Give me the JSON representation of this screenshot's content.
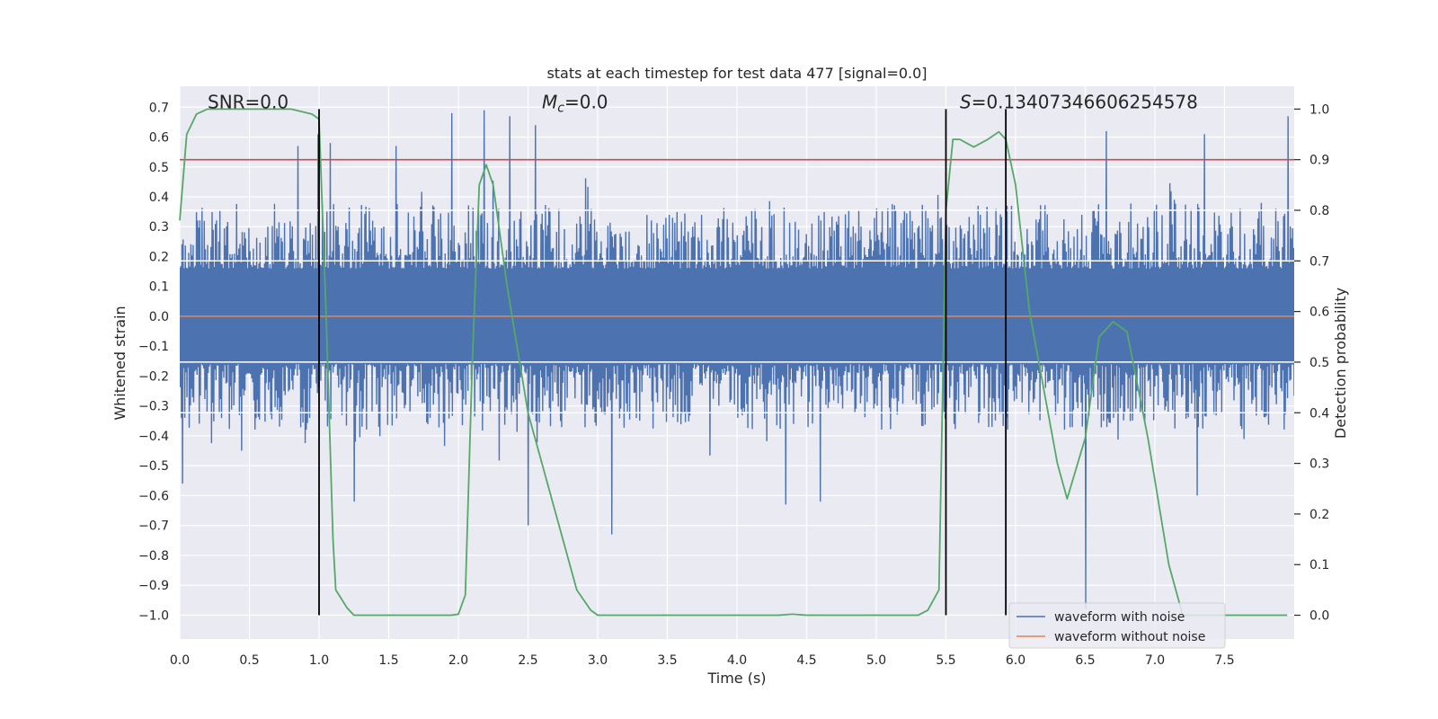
{
  "chart_data": {
    "type": "line",
    "title": "stats at each timestep for test data 477 [signal=0.0]",
    "xlabel": "Time (s)",
    "ylabel_left": "Whitened strain",
    "ylabel_right": "Detection probability",
    "xlim": [
      0.0,
      8.0
    ],
    "ylim_left": [
      -1.08,
      0.77
    ],
    "ylim_right": [
      -0.047,
      1.045
    ],
    "x_ticks": [
      0.0,
      0.5,
      1.0,
      1.5,
      2.0,
      2.5,
      3.0,
      3.5,
      4.0,
      4.5,
      5.0,
      5.5,
      6.0,
      6.5,
      7.0,
      7.5
    ],
    "x_tick_labels": [
      "0.0",
      "0.5",
      "1.0",
      "1.5",
      "2.0",
      "2.5",
      "3.0",
      "3.5",
      "4.0",
      "4.5",
      "5.0",
      "5.5",
      "6.0",
      "6.5",
      "7.0",
      "7.5"
    ],
    "y_ticks_left": [
      0.7,
      0.6,
      0.5,
      0.4,
      0.3,
      0.2,
      0.1,
      0.0,
      -0.1,
      -0.2,
      -0.3,
      -0.4,
      -0.5,
      -0.6,
      -0.7,
      -0.8,
      -0.9,
      -1.0
    ],
    "y_tick_labels_left": [
      "0.7",
      "0.6",
      "0.5",
      "0.4",
      "0.3",
      "0.2",
      "0.1",
      "0.0",
      "−0.1",
      "−0.2",
      "−0.3",
      "−0.4",
      "−0.5",
      "−0.6",
      "−0.7",
      "−0.8",
      "−0.9",
      "−1.0"
    ],
    "y_ticks_right": [
      1.0,
      0.9,
      0.8,
      0.7,
      0.6,
      0.5,
      0.4,
      0.3,
      0.2,
      0.1,
      0.0
    ],
    "y_tick_labels_right": [
      "1.0",
      "0.9",
      "0.8",
      "0.7",
      "0.6",
      "0.5",
      "0.4",
      "0.3",
      "0.2",
      "0.1",
      "0.0"
    ],
    "annotations": [
      {
        "name": "snr",
        "text": "SNR=0.0",
        "x": 0.2,
        "y_right": 1.0
      },
      {
        "name": "mc",
        "text_pre": "M",
        "text_sub": "c",
        "text_post": "=0.0",
        "x": 2.6,
        "y_right": 1.0
      },
      {
        "name": "score",
        "text_pre": "S",
        "text_post": "=0.13407346606254578",
        "x": 5.6,
        "y_right": 1.0
      }
    ],
    "threshold_right": 0.9,
    "vertical_lines_x": [
      1.0,
      5.5,
      5.93
    ],
    "vertical_lines_y_right": [
      0.0,
      1.0
    ],
    "white_hlines_right": [
      0.8,
      0.7,
      0.5,
      0.4
    ],
    "noise_series": {
      "name": "waveform with noise",
      "samples": 2000,
      "core_amplitude": 0.16,
      "typical_peak": 0.38,
      "spikes": [
        {
          "x": 0.85,
          "y": 0.57
        },
        {
          "x": 0.99,
          "y": 0.61
        },
        {
          "x": 1.08,
          "y": 0.58
        },
        {
          "x": 1.55,
          "y": 0.57
        },
        {
          "x": 1.95,
          "y": 0.68
        },
        {
          "x": 2.18,
          "y": 0.69
        },
        {
          "x": 2.37,
          "y": 0.67
        },
        {
          "x": 2.55,
          "y": 0.64
        },
        {
          "x": 6.65,
          "y": 0.62
        },
        {
          "x": 7.35,
          "y": 0.61
        },
        {
          "x": 7.95,
          "y": 0.67
        },
        {
          "x": 0.02,
          "y": -0.56
        },
        {
          "x": 1.25,
          "y": -0.62
        },
        {
          "x": 2.5,
          "y": -0.7
        },
        {
          "x": 3.1,
          "y": -0.73
        },
        {
          "x": 4.35,
          "y": -0.63
        },
        {
          "x": 4.6,
          "y": -0.62
        },
        {
          "x": 6.5,
          "y": -0.98
        },
        {
          "x": 7.3,
          "y": -0.6
        }
      ]
    },
    "clean_series": {
      "name": "waveform without noise",
      "value": 0.0
    },
    "probability_series": {
      "name": "detection probability",
      "x": [
        0.0,
        0.05,
        0.12,
        0.2,
        0.4,
        0.6,
        0.8,
        0.95,
        1.0,
        1.05,
        1.1,
        1.12,
        1.2,
        1.25,
        1.4,
        1.6,
        1.8,
        1.95,
        2.0,
        2.05,
        2.1,
        2.15,
        2.2,
        2.25,
        2.35,
        2.5,
        2.7,
        2.85,
        2.9,
        2.95,
        3.0,
        3.2,
        3.5,
        4.0,
        4.3,
        4.4,
        4.5,
        4.7,
        5.0,
        5.3,
        5.37,
        5.45,
        5.5,
        5.55,
        5.6,
        5.7,
        5.8,
        5.88,
        5.93,
        6.0,
        6.1,
        6.2,
        6.3,
        6.37,
        6.5,
        6.6,
        6.7,
        6.8,
        6.95,
        7.1,
        7.2,
        7.5,
        7.95
      ],
      "y": [
        0.78,
        0.95,
        0.99,
        1.0,
        1.0,
        1.0,
        1.0,
        0.99,
        0.98,
        0.6,
        0.15,
        0.05,
        0.015,
        0.0,
        0.0,
        0.0,
        0.0,
        0.0,
        0.002,
        0.04,
        0.5,
        0.85,
        0.89,
        0.85,
        0.65,
        0.4,
        0.2,
        0.05,
        0.03,
        0.01,
        0.0,
        0.0,
        0.0,
        0.0,
        0.0,
        0.002,
        0.0,
        0.0,
        0.0,
        0.0,
        0.01,
        0.05,
        0.8,
        0.94,
        0.94,
        0.925,
        0.94,
        0.955,
        0.94,
        0.85,
        0.6,
        0.45,
        0.3,
        0.23,
        0.35,
        0.55,
        0.58,
        0.56,
        0.35,
        0.1,
        0.0,
        0.0,
        0.0
      ]
    },
    "legend": {
      "placement": "lower-right",
      "entries": [
        {
          "label": "waveform with noise",
          "color": "#4c72b0"
        },
        {
          "label": "waveform without noise",
          "color": "#dd8452"
        }
      ]
    },
    "colors": {
      "background": "#eaeaf2",
      "grid": "#ffffff",
      "noise": "#4c72b0",
      "clean": "#dd8452",
      "probability": "#55a868",
      "threshold": "#c44e52",
      "vline": "#000000"
    },
    "grid": true
  }
}
